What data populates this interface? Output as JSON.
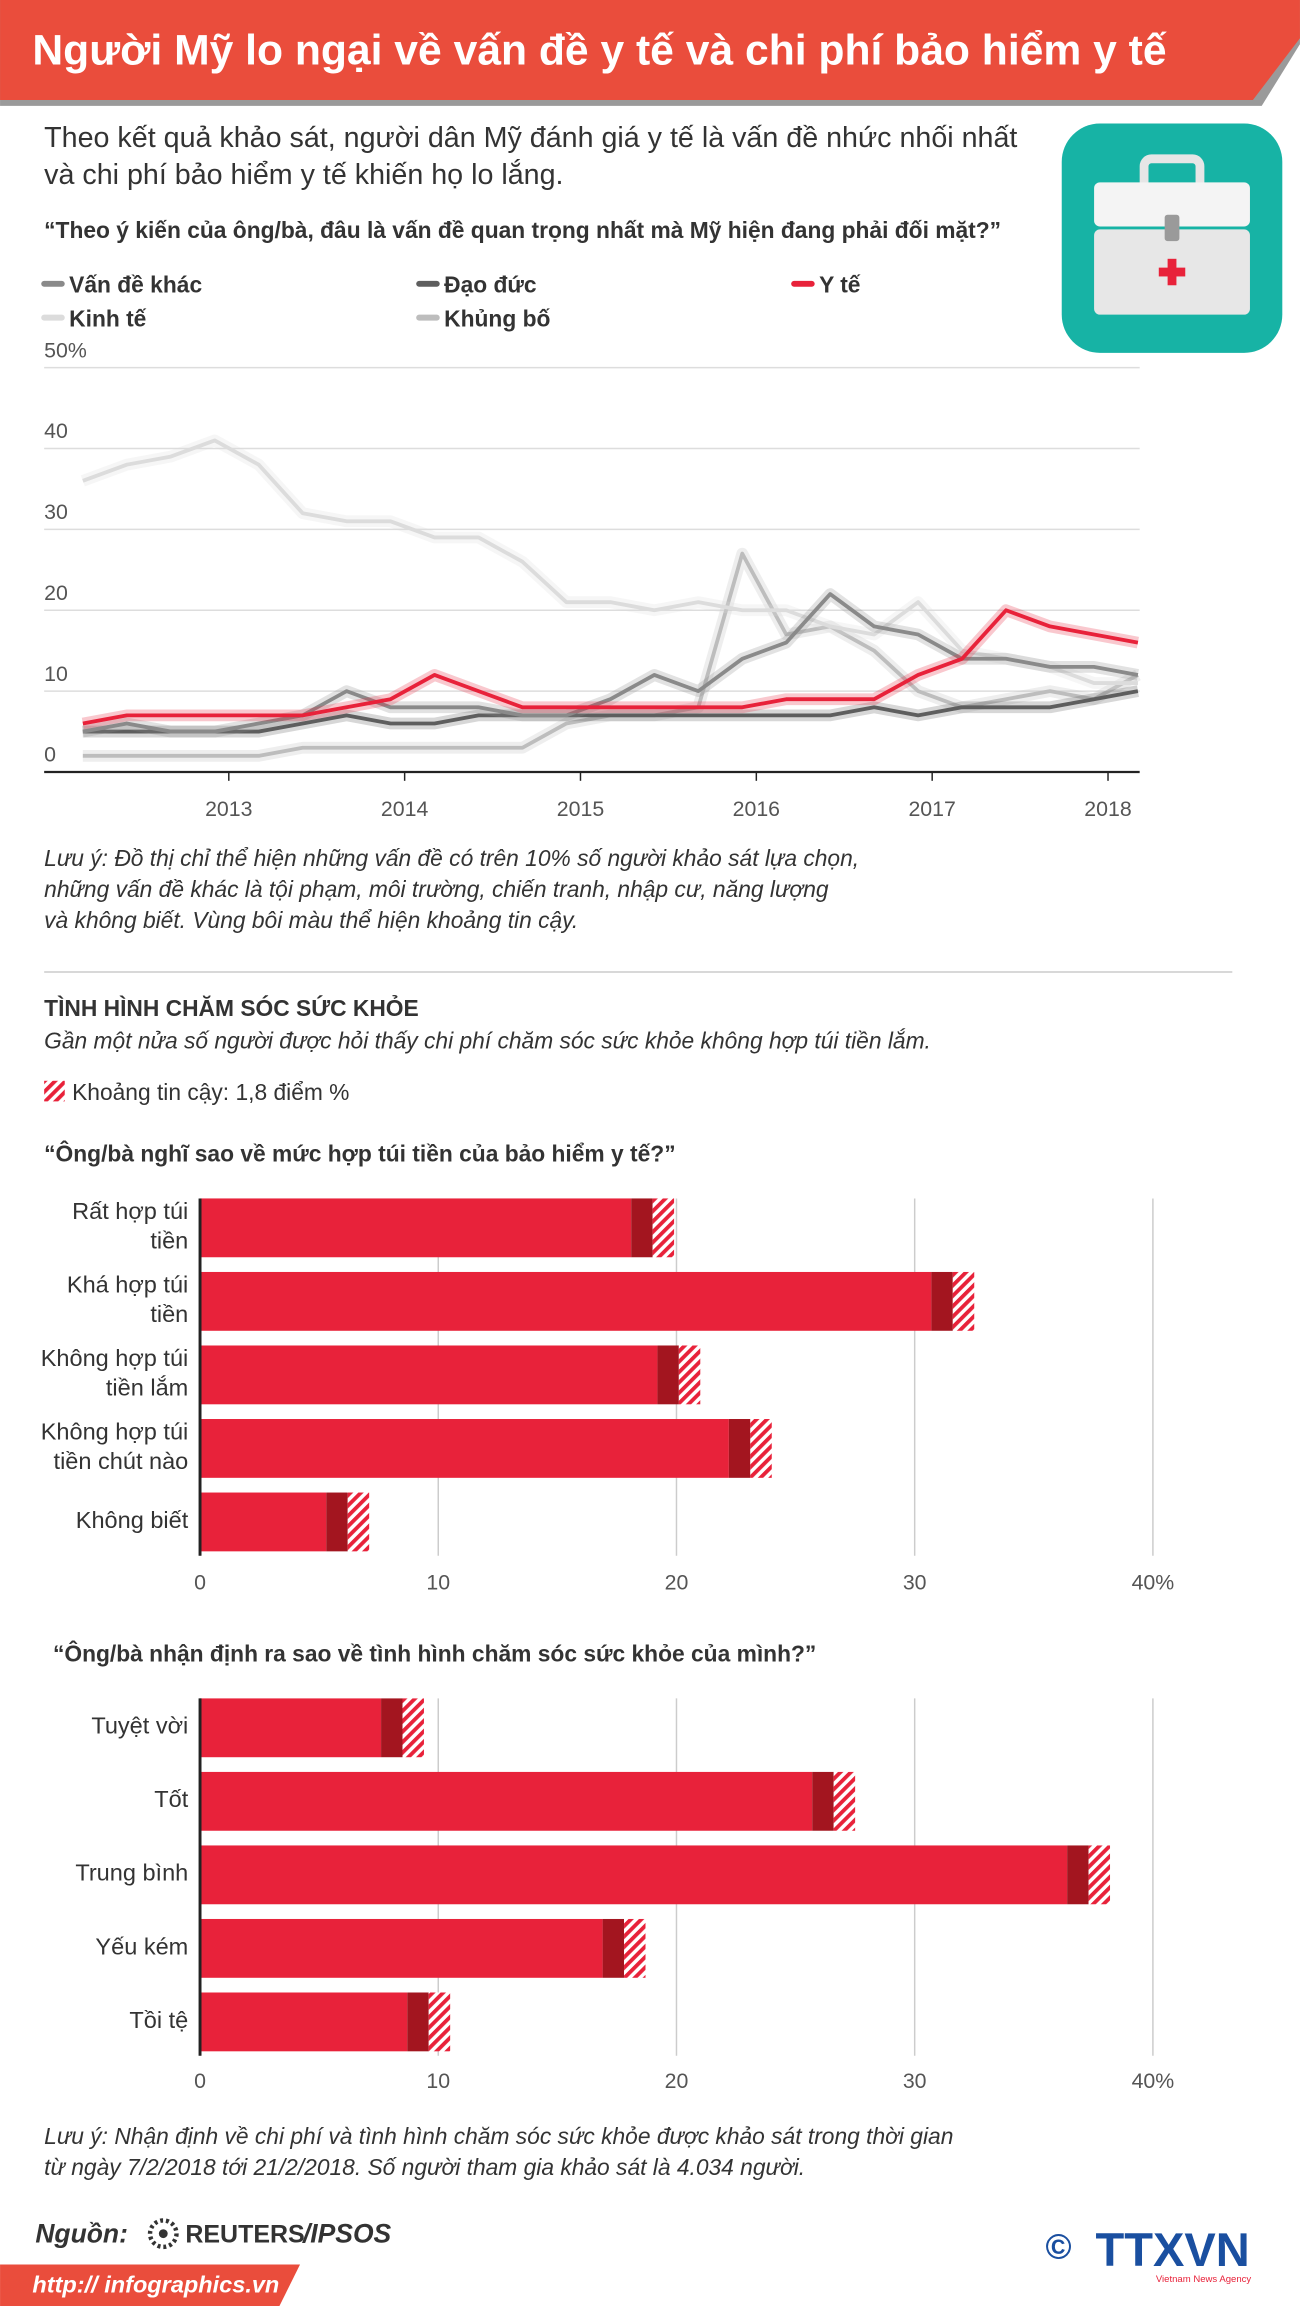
{
  "header": {
    "title": "Người Mỹ lo ngại về vấn đề y tế và chi phí bảo hiểm y tế",
    "intro": [
      "Theo kết quả khảo sát, người dân Mỹ đánh giá y tế là vấn đề nhức nhối nhất",
      "và chi phí bảo hiểm y tế khiến họ lo lắng."
    ]
  },
  "chart_data": [
    {
      "type": "line",
      "title": "“Theo ý kiến của ông/bà, đâu là vấn đề quan trọng nhất mà Mỹ hiện đang phải đối mặt?”",
      "x": [
        2012.17,
        2012.42,
        2012.67,
        2012.92,
        2013.17,
        2013.42,
        2013.67,
        2013.92,
        2014.17,
        2014.42,
        2014.67,
        2014.92,
        2015.17,
        2015.42,
        2015.67,
        2015.92,
        2016.17,
        2016.42,
        2016.67,
        2016.92,
        2017.17,
        2017.42,
        2017.67,
        2017.92,
        2018.17
      ],
      "series": [
        {
          "name": "Vấn đề khác",
          "color": "#8a8a8a",
          "values": [
            5,
            6,
            5,
            5,
            6,
            7,
            10,
            8,
            8,
            8,
            7,
            7,
            9,
            12,
            10,
            14,
            16,
            22,
            18,
            17,
            14,
            14,
            13,
            13,
            12
          ]
        },
        {
          "name": "Đạo đức",
          "color": "#5e5e5e",
          "values": [
            5,
            5,
            5,
            5,
            5,
            6,
            7,
            6,
            6,
            7,
            7,
            7,
            7,
            7,
            7,
            7,
            7,
            7,
            8,
            7,
            8,
            8,
            8,
            9,
            10
          ]
        },
        {
          "name": "Y tế",
          "color": "#e8223a",
          "values": [
            6,
            7,
            7,
            7,
            7,
            7,
            8,
            9,
            12,
            10,
            8,
            8,
            8,
            8,
            8,
            8,
            9,
            9,
            9,
            12,
            14,
            20,
            18,
            17,
            16
          ]
        },
        {
          "name": "Kinh tế",
          "color": "#dcdcdc",
          "values": [
            36,
            38,
            39,
            41,
            38,
            32,
            31,
            31,
            29,
            29,
            26,
            21,
            21,
            20,
            21,
            20,
            20,
            18,
            17,
            21,
            15,
            14,
            13,
            11,
            11
          ]
        },
        {
          "name": "Khủng bố",
          "color": "#bdbdbd",
          "values": [
            2,
            2,
            2,
            2,
            2,
            3,
            3,
            3,
            3,
            3,
            3,
            6,
            7,
            7,
            8,
            27,
            17,
            18,
            15,
            10,
            8,
            9,
            10,
            9,
            12
          ]
        }
      ],
      "xlim": [
        2011.95,
        2018.18
      ],
      "xticks": [
        2013,
        2014,
        2015,
        2016,
        2017,
        2018
      ],
      "ylim": [
        0,
        50
      ],
      "yticks": [
        0,
        10,
        20,
        30,
        40,
        {
          "value": 50,
          "label": "50%"
        }
      ],
      "grid": true,
      "note": [
        "Lưu ý: Đồ thị chỉ thể hiện những vấn đề có trên 10% số người khảo sát lựa chọn,",
        "những vấn đề khác là tội phạm, môi trường, chiến tranh, nhập cư, năng lượng",
        "và không biết. Vùng bôi màu thể hiện khoảng tin cậy."
      ]
    },
    {
      "type": "bar",
      "orientation": "horizontal",
      "title": "“Ông/bà nghĩ sao về mức hợp túi tiền của bảo hiểm y tế?”",
      "categories": [
        "Rất hợp túi tiền",
        "Khá hợp túi tiền",
        "Không hợp túi tiền lắm",
        "Không hợp túi tiền chút nào",
        "Không biết"
      ],
      "values": [
        19.0,
        31.6,
        20.1,
        23.1,
        6.2
      ],
      "error": 1.8,
      "color": "#e8223a",
      "xlim": [
        0,
        40
      ],
      "xticks": [
        0,
        10,
        20,
        30,
        {
          "value": 40,
          "label": "40%"
        }
      ],
      "grid": true
    },
    {
      "type": "bar",
      "orientation": "horizontal",
      "title": "“Ông/bà nhận định ra sao về tình hình chăm sóc sức khỏe của mình?”",
      "categories": [
        "Tuyệt vời",
        "Tốt",
        "Trung bình",
        "Yếu kém",
        "Tồi tệ"
      ],
      "values": [
        8.5,
        26.6,
        37.3,
        17.8,
        9.6
      ],
      "error": 1.8,
      "color": "#e8223a",
      "xlim": [
        0,
        40
      ],
      "xticks": [
        0,
        10,
        20,
        30,
        {
          "value": 40,
          "label": "40%"
        }
      ],
      "grid": true
    }
  ],
  "section": {
    "title": "TÌNH HÌNH CHĂM SÓC SỨC KHỎE",
    "subtitle": "Gần một nửa số người được hỏi thấy chi phí chăm sóc sức khỏe không hợp túi tiền lắm.",
    "ci_legend": "Khoảng tin cậy: 1,8 điểm %"
  },
  "notes": [
    "Lưu ý: Nhận định về chi phí và tình hình chăm sóc sức khỏe được khảo sát trong thời gian",
    "từ ngày 7/2/2018 tới 21/2/2018. Số người tham gia khảo sát là 4.034 người."
  ],
  "footer": {
    "source_label": "Nguồn:",
    "sources": [
      "REUTERS",
      "/IPSOS"
    ],
    "url": "http:// infographics.vn",
    "copyright": "©",
    "agency": "TTXVN",
    "agency_en": "Vietnam News Agency"
  }
}
